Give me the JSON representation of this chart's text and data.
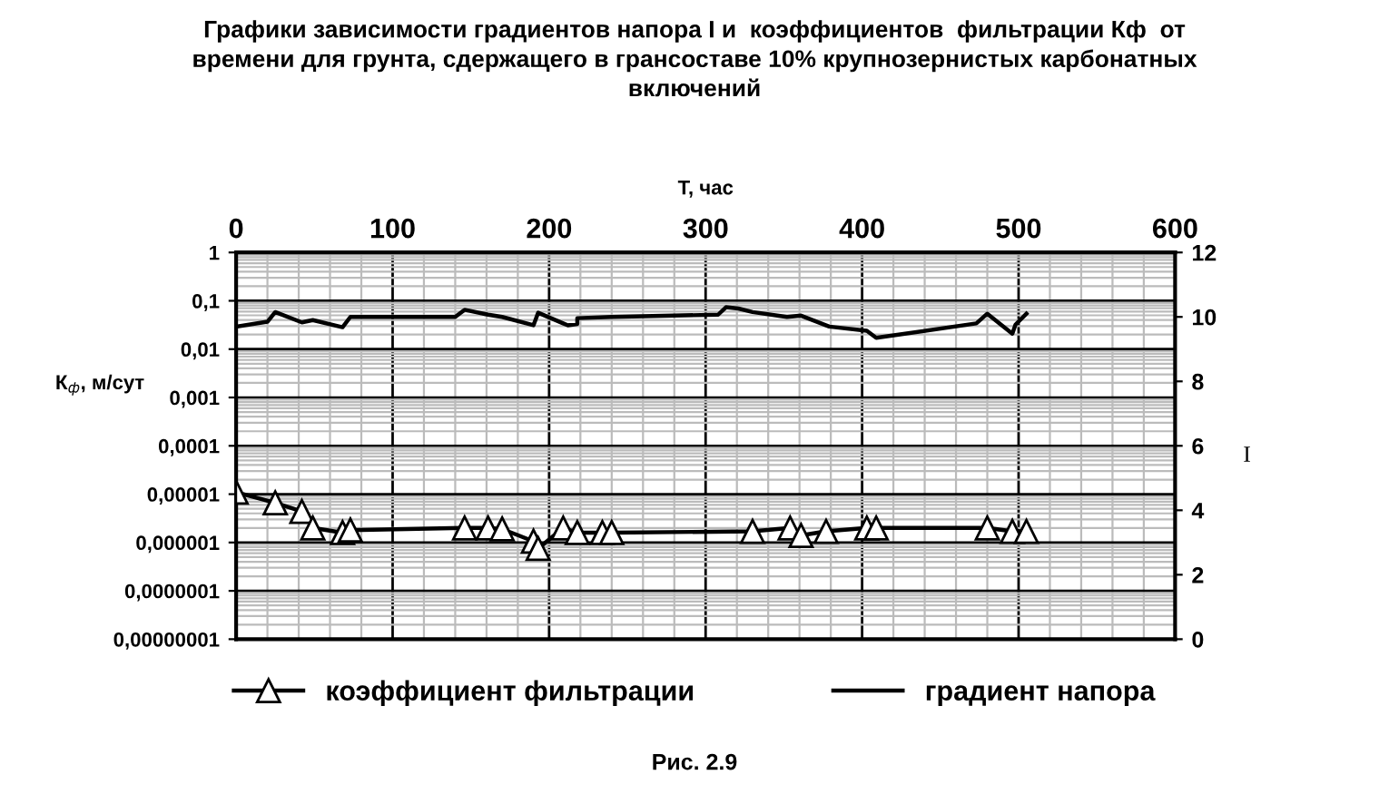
{
  "chart_data": {
    "type": "line",
    "title": "Графики зависимости градиентов напора I и  коэффициентов  фильтрации Кф  от\nвремени для грунта, сдержащего в грансоставе 10% крупнозернистых карбонатных\nвключений",
    "xlabel": "Т, час",
    "ylabel": "К$_{ф}$, м/сут",
    "y2label": "I",
    "xlim": [
      0,
      600
    ],
    "xticks": [
      0,
      100,
      200,
      300,
      400,
      500,
      600
    ],
    "ylim": [
      1e-08,
      1
    ],
    "yticks": [
      {
        "value": 1e-08,
        "label": "0,00000001"
      },
      {
        "value": 1e-07,
        "label": "0,0000001"
      },
      {
        "value": 1e-06,
        "label": "0,000001"
      },
      {
        "value": 1e-05,
        "label": "0,00001"
      },
      {
        "value": 0.0001,
        "label": "0,0001"
      },
      {
        "value": 0.001,
        "label": "0,001"
      },
      {
        "value": 0.01,
        "label": "0,01"
      },
      {
        "value": 0.1,
        "label": "0,1"
      },
      {
        "value": 1,
        "label": "1"
      }
    ],
    "log": "y",
    "y2lim": [
      0,
      12
    ],
    "y2ticks": [
      0,
      2,
      4,
      6,
      8,
      10,
      12
    ],
    "grid": true,
    "legend": "bottom",
    "series": [
      {
        "name": "коэффициент фильтрации",
        "color": "#000000",
        "marker": "triangle",
        "x": [
          0,
          25,
          42,
          49,
          68,
          73,
          146,
          161,
          170,
          190,
          193,
          209,
          218,
          234,
          240,
          330,
          354,
          361,
          377,
          403,
          409,
          480,
          496,
          505
        ],
        "values": [
          1.1e-05,
          6.6e-06,
          4.4e-06,
          2e-06,
          1.6e-06,
          1.8e-06,
          2e-06,
          2e-06,
          1.9e-06,
          1.06e-06,
          7.5e-07,
          2e-06,
          1.6e-06,
          1.6e-06,
          1.6e-06,
          1.7e-06,
          2e-06,
          1.4e-06,
          1.7e-06,
          2e-06,
          2e-06,
          2e-06,
          1.7e-06,
          1.7e-06
        ]
      },
      {
        "name": "градиент напора",
        "color": "#000000",
        "marker": "none",
        "axis": "y2",
        "x": [
          0,
          20,
          25,
          42,
          49,
          68,
          73,
          140,
          146,
          161,
          170,
          190,
          193,
          209,
          212,
          218,
          218,
          240,
          308,
          313,
          321,
          330,
          352,
          361,
          379,
          403,
          409,
          473,
          480,
          496,
          498,
          505
        ],
        "values": [
          9.7,
          9.85,
          10.15,
          9.83,
          9.9,
          9.68,
          10.0,
          10.0,
          10.22,
          10.07,
          10.0,
          9.74,
          10.13,
          9.8,
          9.74,
          9.78,
          9.96,
          10.0,
          10.07,
          10.3,
          10.26,
          10.15,
          10.0,
          10.04,
          9.7,
          9.57,
          9.35,
          9.8,
          10.1,
          9.48,
          9.76,
          10.1
        ]
      }
    ],
    "annotations": [
      "Рис. 2.9"
    ]
  }
}
